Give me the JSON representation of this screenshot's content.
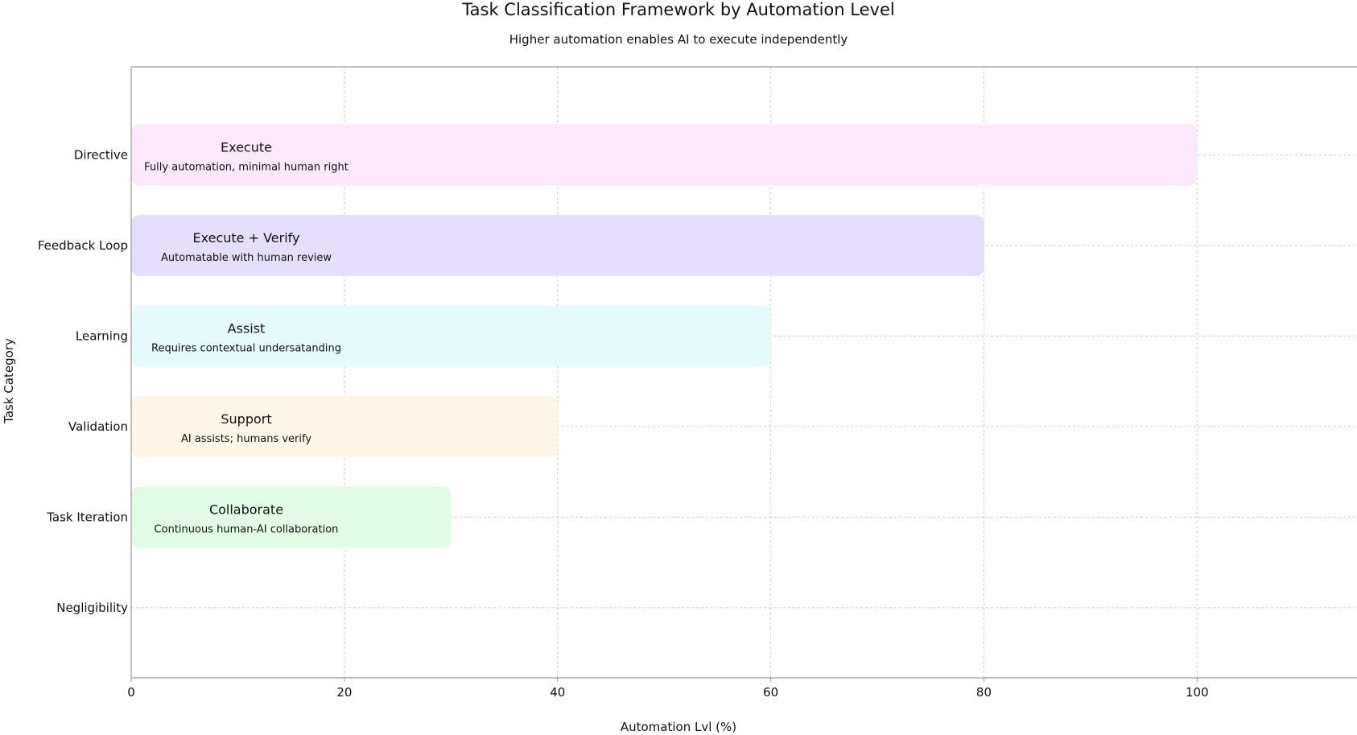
{
  "chart_data": {
    "type": "bar",
    "orientation": "horizontal",
    "title": "Task Classification Framework by Automation Level",
    "subtitle": "Higher automation enables AI to execute independently",
    "xlabel": "Automation Lvl (%)",
    "ylabel": "Task Category",
    "xlim": [
      0,
      115
    ],
    "xticks": [
      "0",
      "20",
      "40",
      "60",
      "80",
      "100"
    ],
    "grid": true,
    "categories": [
      "Directive",
      "Feedback Loop",
      "Learning",
      "Validation",
      "Task Iteration",
      "Negligibility"
    ],
    "values": [
      100,
      80,
      60,
      40,
      30,
      null
    ],
    "bar_labels": [
      {
        "title": "Execute",
        "desc": "Fully automation, minimal human right"
      },
      {
        "title": "Execute + Verify",
        "desc": "Automatable with human review"
      },
      {
        "title": "Assist",
        "desc": "Requires contextual undersatanding"
      },
      {
        "title": "Support",
        "desc": "AI assists; humans verify"
      },
      {
        "title": "Collaborate",
        "desc": "Continuous human-AI collaboration"
      },
      null
    ],
    "colors": [
      "#fbe9fb",
      "#e6dffc",
      "#e6fafc",
      "#fdf6e8",
      "#e1fbe6",
      null
    ]
  }
}
